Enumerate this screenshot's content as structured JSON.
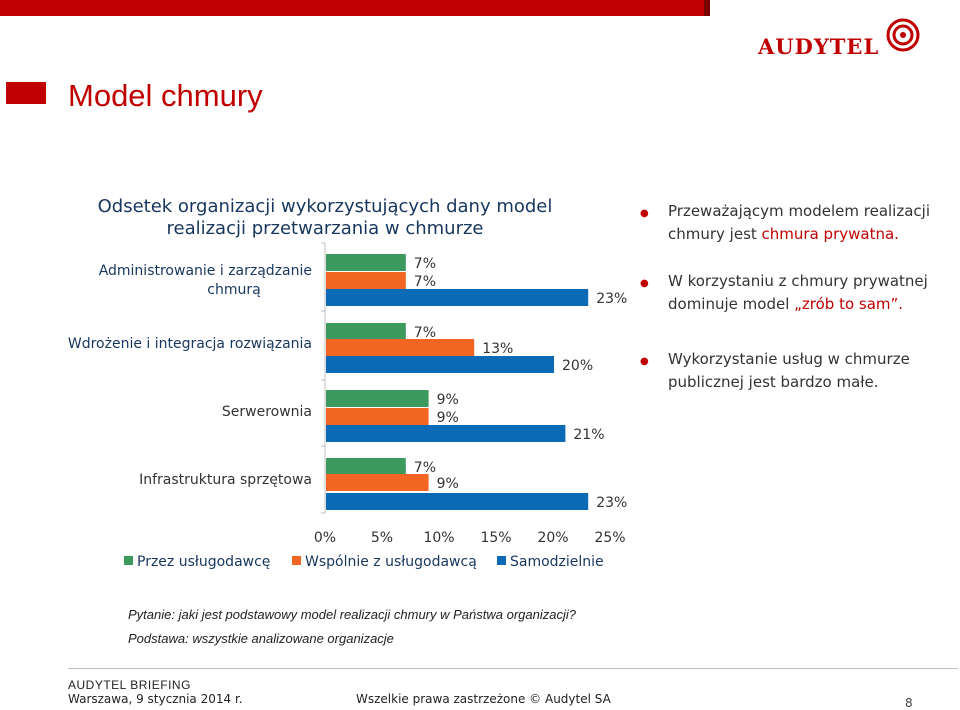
{
  "header": {
    "logo_text": "AUDYTEL",
    "title": "Model chmury",
    "accent_color": "#c00000"
  },
  "chart_data": {
    "type": "bar",
    "orientation": "horizontal",
    "title": "Odsetek organizacji wykorzystujących dany model realizacji przetwarzania w chmurze",
    "categories": [
      "Administrowanie i zarządzanie chmurą",
      "Wdrożenie i integracja rozwiązania",
      "Serwerownia",
      "Infrastruktura sprzętowa"
    ],
    "series": [
      {
        "name": "Przez usługodawcę",
        "color": "#3c9a5f",
        "values": [
          7,
          7,
          9,
          7
        ],
        "labels": [
          "7%",
          "7%",
          "9%",
          "7%"
        ]
      },
      {
        "name": "Wspólnie z usługodawcą",
        "color": "#f26522",
        "values": [
          7,
          13,
          9,
          9
        ],
        "labels": [
          "7%",
          "13%",
          "9%",
          "9%"
        ]
      },
      {
        "name": "Samodzielnie",
        "color": "#0a6ab6",
        "values": [
          23,
          20,
          21,
          23
        ],
        "labels": [
          "23%",
          "20%",
          "21%",
          "23%"
        ]
      }
    ],
    "xlim": [
      0,
      25
    ],
    "x_ticks": [
      "0%",
      "5%",
      "10%",
      "15%",
      "20%",
      "25%"
    ],
    "legend_position": "bottom",
    "grid": false
  },
  "bullets": [
    {
      "text": "Przeważającym modelem realizacji chmury jest ",
      "highlight": "chmura prywatna."
    },
    {
      "text": "W korzystaniu z chmury prywatnej dominuje model ",
      "highlight": "„zrób to sam”."
    },
    {
      "text": "Wykorzystanie usług w chmurze publicznej jest bardzo małe.",
      "highlight": ""
    }
  ],
  "notes": {
    "question": "Pytanie: jaki jest podstawowy model realizacji chmury w Państwa organizacji?",
    "basis": "Podstawa: wszystkie analizowane organizacje"
  },
  "footer": {
    "brief": "AUDYTEL BRIEFING",
    "date": "Warszawa, 9 stycznia 2014 r.",
    "rights": "Wszelkie prawa zastrzeżone © Audytel  SA",
    "page": "8"
  }
}
